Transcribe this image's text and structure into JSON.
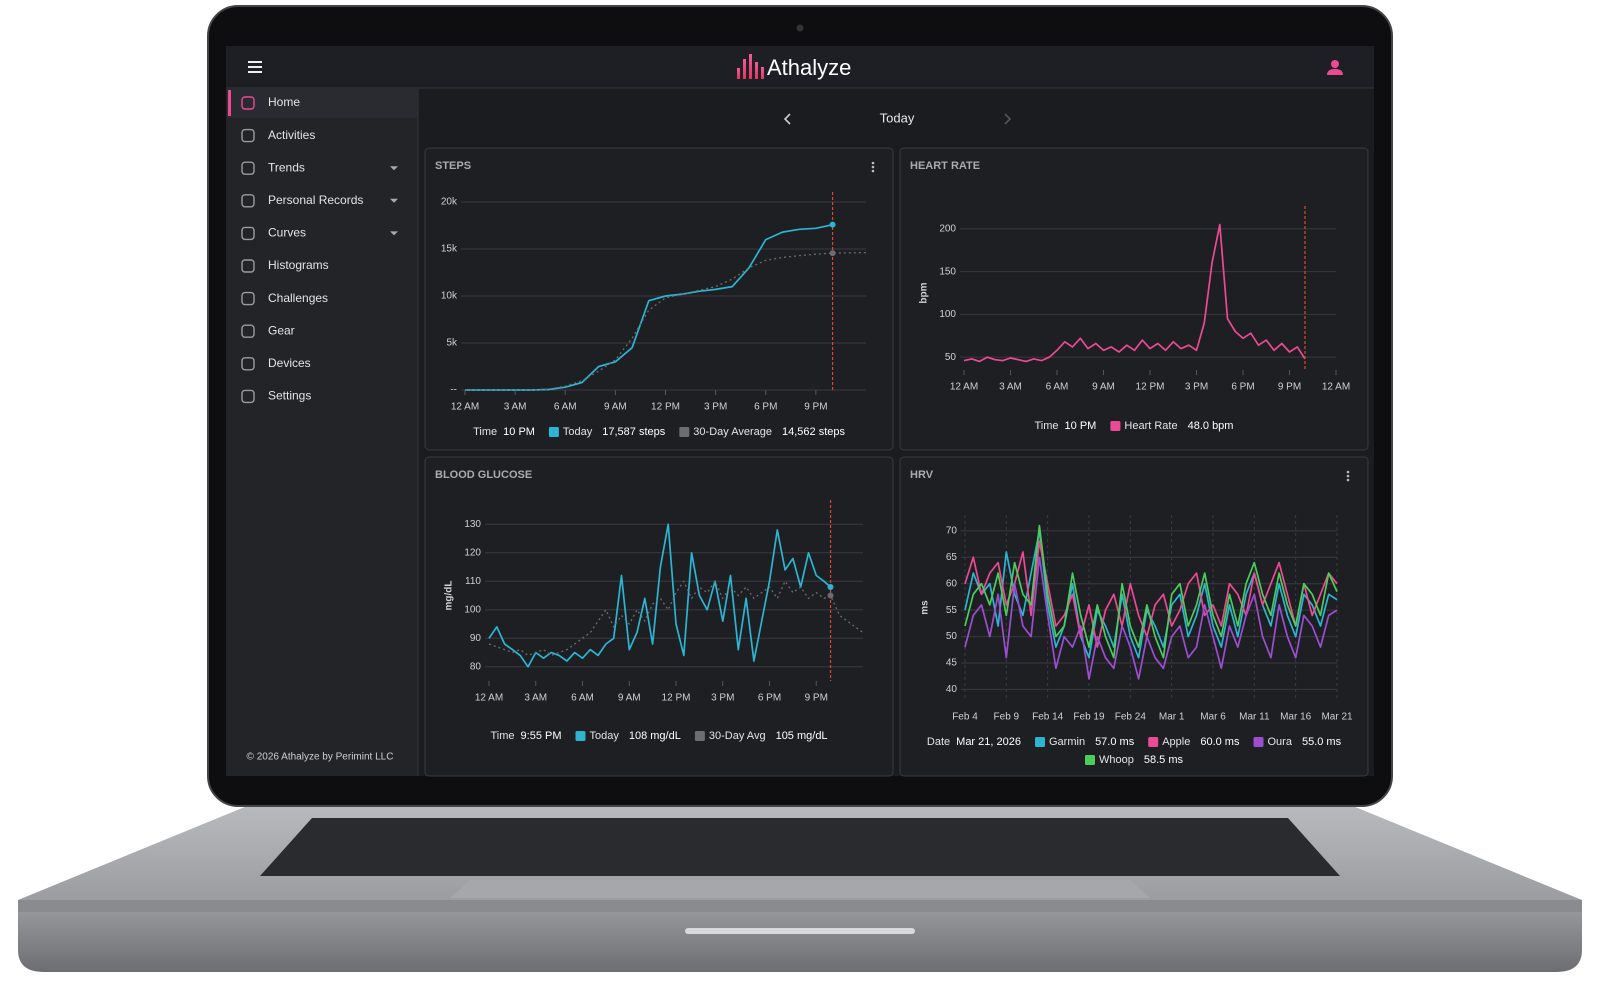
{
  "header": {
    "brand": "Athalyze"
  },
  "sidebar": {
    "items": [
      {
        "label": "Home",
        "active": true
      },
      {
        "label": "Activities"
      },
      {
        "label": "Trends",
        "submenu": true
      },
      {
        "label": "Personal Records",
        "submenu": true
      },
      {
        "label": "Curves",
        "submenu": true
      },
      {
        "label": "Histograms"
      },
      {
        "label": "Challenges"
      },
      {
        "label": "Gear"
      },
      {
        "label": "Devices"
      },
      {
        "label": "Settings"
      }
    ],
    "footer": "© 2026 Athalyze by Perimint LLC"
  },
  "date_nav": {
    "label": "Today"
  },
  "chart_data": [
    {
      "type": "line",
      "title": "STEPS",
      "menu": true,
      "markers_at_cursor": true,
      "x": [
        0,
        1,
        2,
        3,
        4,
        5,
        6,
        7,
        8,
        9,
        10,
        11,
        12,
        13,
        14,
        15,
        16,
        17,
        18,
        19,
        20,
        21,
        22,
        23,
        24
      ],
      "xlim": [
        0,
        24
      ],
      "xticks": [
        {
          "value": 0,
          "label": "12 AM"
        },
        {
          "value": 3,
          "label": "3 AM"
        },
        {
          "value": 6,
          "label": "6 AM"
        },
        {
          "value": 9,
          "label": "9 AM"
        },
        {
          "value": 12,
          "label": "12 PM"
        },
        {
          "value": 15,
          "label": "3 PM"
        },
        {
          "value": 18,
          "label": "6 PM"
        },
        {
          "value": 21,
          "label": "9 PM"
        }
      ],
      "ylim": [
        0,
        20000
      ],
      "yticks": [
        {
          "value": 0,
          "label": "--"
        },
        {
          "value": 5000,
          "label": "5k"
        },
        {
          "value": 10000,
          "label": "10k"
        },
        {
          "value": 15000,
          "label": "15k"
        },
        {
          "value": 20000,
          "label": "20k"
        }
      ],
      "grid": true,
      "cursor_x": 22,
      "readout": {
        "x_label": "Time",
        "x_value": "10 PM"
      },
      "series": [
        {
          "name": "Today",
          "color": "#2bb5d3",
          "style": "solid",
          "readout": "17,587 steps",
          "values": [
            0,
            0,
            0,
            0,
            0,
            50,
            300,
            800,
            2500,
            3000,
            4500,
            9500,
            10000,
            10200,
            10500,
            10700,
            11000,
            13000,
            16000,
            16800,
            17100,
            17200,
            17587,
            null,
            null
          ]
        },
        {
          "name": "30-Day Average",
          "color": "#6b6d72",
          "style": "dotted",
          "readout": "14,562 steps",
          "values": [
            0,
            0,
            0,
            0,
            0,
            100,
            400,
            1000,
            2000,
            3200,
            5500,
            8500,
            9800,
            10200,
            10600,
            11000,
            11800,
            13000,
            13800,
            14100,
            14300,
            14450,
            14562,
            14600,
            14620
          ]
        }
      ]
    },
    {
      "type": "line",
      "title": "HEART RATE",
      "ylabel": "bpm",
      "x": [
        0,
        0.5,
        1,
        1.5,
        2,
        2.5,
        3,
        3.5,
        4,
        4.5,
        5,
        5.5,
        6,
        6.5,
        7,
        7.5,
        8,
        8.5,
        9,
        9.5,
        10,
        10.5,
        11,
        11.5,
        12,
        12.5,
        13,
        13.5,
        14,
        14.5,
        15,
        15.5,
        16,
        16.5,
        17,
        17.5,
        18,
        18.5,
        19,
        19.5,
        20,
        20.5,
        21,
        21.5,
        22
      ],
      "xlim": [
        0,
        24
      ],
      "xticks": [
        {
          "value": 0,
          "label": "12 AM"
        },
        {
          "value": 3,
          "label": "3 AM"
        },
        {
          "value": 6,
          "label": "6 AM"
        },
        {
          "value": 9,
          "label": "9 AM"
        },
        {
          "value": 12,
          "label": "12 PM"
        },
        {
          "value": 15,
          "label": "3 PM"
        },
        {
          "value": 18,
          "label": "6 PM"
        },
        {
          "value": 21,
          "label": "9 PM"
        },
        {
          "value": 24,
          "label": "12 AM"
        }
      ],
      "ylim": [
        35,
        215
      ],
      "yticks": [
        50,
        100,
        150,
        200
      ],
      "grid": true,
      "cursor_x": 22,
      "readout": {
        "x_label": "Time",
        "x_value": "10 PM"
      },
      "series": [
        {
          "name": "Heart Rate",
          "color": "#ec4a93",
          "style": "solid",
          "readout": "48.0 bpm",
          "values": [
            46,
            48,
            45,
            50,
            47,
            46,
            49,
            47,
            45,
            48,
            46,
            50,
            58,
            68,
            62,
            72,
            60,
            66,
            58,
            62,
            56,
            64,
            58,
            70,
            60,
            66,
            58,
            68,
            60,
            64,
            58,
            90,
            160,
            205,
            95,
            80,
            72,
            78,
            64,
            70,
            58,
            66,
            56,
            62,
            48
          ]
        }
      ]
    },
    {
      "type": "line",
      "title": "BLOOD GLUCOSE",
      "ylabel": "mg/dL",
      "markers_at_cursor": true,
      "x": [
        0,
        0.5,
        1,
        1.5,
        2,
        2.5,
        3,
        3.5,
        4,
        4.5,
        5,
        5.5,
        6,
        6.5,
        7,
        7.5,
        8,
        8.5,
        9,
        9.5,
        10,
        10.5,
        11,
        11.5,
        12,
        12.5,
        13,
        13.5,
        14,
        14.5,
        15,
        15.5,
        16,
        16.5,
        17,
        17.5,
        18,
        18.5,
        19,
        19.5,
        20,
        20.5,
        21,
        21.5,
        21.9167,
        22.5,
        23,
        23.5,
        24
      ],
      "xlim": [
        0,
        24
      ],
      "xticks": [
        {
          "value": 0,
          "label": "12 AM"
        },
        {
          "value": 3,
          "label": "3 AM"
        },
        {
          "value": 6,
          "label": "6 AM"
        },
        {
          "value": 9,
          "label": "9 AM"
        },
        {
          "value": 12,
          "label": "12 PM"
        },
        {
          "value": 15,
          "label": "3 PM"
        },
        {
          "value": 18,
          "label": "6 PM"
        },
        {
          "value": 21,
          "label": "9 PM"
        }
      ],
      "ylim": [
        75,
        135
      ],
      "yticks": [
        80,
        90,
        100,
        110,
        120,
        130
      ],
      "grid": true,
      "cursor_x": 21.9167,
      "readout": {
        "x_label": "Time",
        "x_value": "9:55 PM"
      },
      "series": [
        {
          "name": "Today",
          "color": "#2bb5d3",
          "style": "solid",
          "readout": "108 mg/dL",
          "values": [
            90,
            94,
            88,
            86,
            84,
            80,
            85,
            83,
            85,
            84,
            82,
            85,
            83,
            86,
            84,
            88,
            90,
            112,
            86,
            92,
            104,
            88,
            115,
            130,
            95,
            84,
            120,
            105,
            100,
            110,
            96,
            112,
            86,
            104,
            82,
            96,
            110,
            128,
            114,
            118,
            108,
            120,
            112,
            110,
            108,
            null,
            null,
            null,
            null
          ]
        },
        {
          "name": "30-Day Avg",
          "color": "#6b6d72",
          "style": "dotted",
          "readout": "105 mg/dL",
          "values": [
            88,
            87,
            86,
            85,
            86,
            84,
            85,
            86,
            84,
            85,
            86,
            88,
            90,
            92,
            96,
            100,
            94,
            98,
            95,
            100,
            96,
            102,
            104,
            100,
            106,
            110,
            104,
            108,
            106,
            110,
            104,
            108,
            105,
            108,
            104,
            106,
            108,
            104,
            110,
            106,
            108,
            104,
            106,
            104,
            105,
            98,
            96,
            94,
            92
          ]
        }
      ]
    },
    {
      "type": "line",
      "title": "HRV",
      "ylabel": "ms",
      "menu": true,
      "categories": [
        "Feb 4",
        null,
        null,
        null,
        null,
        "Feb 9",
        null,
        null,
        null,
        null,
        "Feb 14",
        null,
        null,
        null,
        null,
        "Feb 19",
        null,
        null,
        null,
        null,
        "Feb 24",
        null,
        null,
        null,
        null,
        "Mar 1",
        null,
        null,
        null,
        null,
        "Mar 6",
        null,
        null,
        null,
        null,
        "Mar 11",
        null,
        null,
        null,
        null,
        "Mar 16",
        null,
        null,
        null,
        null,
        "Mar 21"
      ],
      "ylim": [
        38,
        73
      ],
      "yticks": [
        40,
        45,
        50,
        55,
        60,
        65,
        70
      ],
      "grid": true,
      "readout": {
        "x_label": "Date",
        "x_value": "Mar 21, 2026"
      },
      "series": [
        {
          "name": "Garmin",
          "color": "#2bb5d3",
          "style": "solid",
          "readout": "57.0 ms",
          "values": [
            55,
            62,
            58,
            60,
            52,
            66,
            58,
            54,
            62,
            70,
            56,
            48,
            52,
            60,
            50,
            46,
            55,
            52,
            48,
            58,
            50,
            46,
            55,
            52,
            48,
            56,
            58,
            50,
            54,
            60,
            52,
            48,
            56,
            50,
            58,
            62,
            56,
            52,
            60,
            54,
            50,
            58,
            56,
            52,
            58,
            57
          ]
        },
        {
          "name": "Apple",
          "color": "#ec4a93",
          "style": "solid",
          "readout": "60.0 ms",
          "values": [
            60,
            65,
            58,
            62,
            64,
            56,
            60,
            66,
            54,
            68,
            60,
            52,
            54,
            58,
            50,
            56,
            48,
            55,
            58,
            52,
            60,
            54,
            50,
            56,
            58,
            52,
            55,
            60,
            62,
            54,
            56,
            52,
            60,
            58,
            54,
            62,
            56,
            60,
            64,
            58,
            52,
            60,
            54,
            58,
            62,
            60
          ]
        },
        {
          "name": "Oura",
          "color": "#9b4fcf",
          "style": "solid",
          "readout": "55.0 ms",
          "values": [
            48,
            54,
            56,
            50,
            58,
            46,
            60,
            52,
            50,
            65,
            54,
            44,
            50,
            48,
            52,
            42,
            50,
            46,
            44,
            52,
            48,
            42,
            50,
            46,
            44,
            50,
            52,
            46,
            48,
            56,
            50,
            44,
            52,
            48,
            54,
            58,
            50,
            46,
            56,
            50,
            46,
            54,
            52,
            48,
            54,
            55
          ]
        },
        {
          "name": "Whoop",
          "color": "#4ccc5a",
          "style": "solid",
          "readout": "58.5 ms",
          "values": [
            52,
            58,
            60,
            56,
            62,
            54,
            64,
            58,
            56,
            71,
            58,
            50,
            52,
            62,
            54,
            48,
            56,
            50,
            46,
            60,
            52,
            48,
            56,
            50,
            46,
            58,
            60,
            52,
            56,
            62,
            54,
            50,
            58,
            52,
            60,
            64,
            58,
            54,
            62,
            56,
            52,
            60,
            58,
            54,
            62,
            58.5
          ]
        }
      ]
    }
  ]
}
